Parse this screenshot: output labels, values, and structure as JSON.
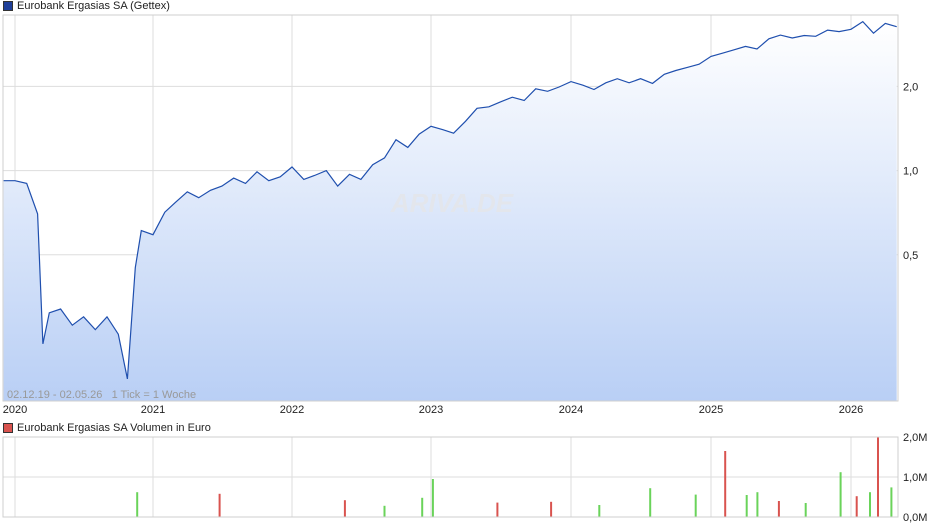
{
  "legend": {
    "price_label": "Eurobank Ergasias SA (Gettex)",
    "volume_label": "Eurobank Ergasias SA Volumen in Euro",
    "price_color": "#1f3f99",
    "volume_color": "#d9534f"
  },
  "range_info": "02.12.19 - 02.05.26   1 Tick = 1 Woche",
  "watermark": "ARIVA.DE",
  "chart_data": [
    {
      "type": "area",
      "series": [
        {
          "name": "Eurobank Ergasias SA (Gettex)",
          "x": [
            "2019-12-02",
            "2020-01-01",
            "2020-02-01",
            "2020-03-01",
            "2020-03-15",
            "2020-04-01",
            "2020-05-01",
            "2020-06-01",
            "2020-07-01",
            "2020-08-01",
            "2020-09-01",
            "2020-10-01",
            "2020-10-25",
            "2020-11-15",
            "2020-12-01",
            "2021-01-01",
            "2021-02-01",
            "2021-03-01",
            "2021-04-01",
            "2021-05-01",
            "2021-06-01",
            "2021-07-01",
            "2021-08-01",
            "2021-09-01",
            "2021-10-01",
            "2021-11-01",
            "2021-12-01",
            "2022-01-01",
            "2022-02-01",
            "2022-03-01",
            "2022-04-01",
            "2022-05-01",
            "2022-06-01",
            "2022-07-01",
            "2022-08-01",
            "2022-09-01",
            "2022-10-01",
            "2022-11-01",
            "2022-12-01",
            "2023-01-01",
            "2023-02-01",
            "2023-03-01",
            "2023-04-01",
            "2023-05-01",
            "2023-06-01",
            "2023-07-01",
            "2023-08-01",
            "2023-09-01",
            "2023-10-01",
            "2023-11-01",
            "2023-12-01",
            "2024-01-01",
            "2024-02-01",
            "2024-03-01",
            "2024-04-01",
            "2024-05-01",
            "2024-06-01",
            "2024-07-01",
            "2024-08-01",
            "2024-09-01",
            "2024-10-01",
            "2024-11-01",
            "2024-12-01",
            "2025-01-01",
            "2025-02-01",
            "2025-03-01",
            "2025-04-01",
            "2025-05-01",
            "2025-06-01",
            "2025-07-01",
            "2025-08-01",
            "2025-09-01",
            "2025-10-01",
            "2025-11-01",
            "2025-12-01",
            "2026-01-01",
            "2026-02-01",
            "2026-03-01",
            "2026-04-01",
            "2026-05-01"
          ],
          "values": [
            0.92,
            0.92,
            0.9,
            0.7,
            0.24,
            0.31,
            0.32,
            0.28,
            0.3,
            0.27,
            0.3,
            0.26,
            0.18,
            0.45,
            0.61,
            0.59,
            0.71,
            0.77,
            0.84,
            0.8,
            0.85,
            0.88,
            0.94,
            0.9,
            0.99,
            0.92,
            0.95,
            1.03,
            0.93,
            0.96,
            1.0,
            0.88,
            0.97,
            0.93,
            1.05,
            1.11,
            1.29,
            1.21,
            1.35,
            1.44,
            1.4,
            1.36,
            1.5,
            1.67,
            1.69,
            1.76,
            1.83,
            1.78,
            1.96,
            1.92,
            1.99,
            2.08,
            2.02,
            1.95,
            2.06,
            2.13,
            2.06,
            2.13,
            2.05,
            2.21,
            2.28,
            2.34,
            2.4,
            2.56,
            2.63,
            2.7,
            2.78,
            2.72,
            2.96,
            3.05,
            2.98,
            3.04,
            3.02,
            3.18,
            3.14,
            3.2,
            3.41,
            3.1,
            3.36,
            3.27
          ]
        }
      ],
      "xlabel": "",
      "ylabel": "",
      "x_ticks": [
        "2020",
        "2021",
        "2022",
        "2023",
        "2024",
        "2025",
        "2026"
      ],
      "y_ticks": [
        "0,5",
        "1,0",
        "2,0"
      ],
      "y_scale": "log",
      "ylim": [
        0.15,
        3.6
      ],
      "grid": true,
      "legend_position": "top-left"
    },
    {
      "type": "bar",
      "series": [
        {
          "name": "Eurobank Ergasias SA Volumen in Euro",
          "x": [
            "2020-11-20",
            "2021-06-25",
            "2022-05-20",
            "2022-09-01",
            "2022-12-09",
            "2023-01-06",
            "2023-06-23",
            "2023-11-10",
            "2024-03-15",
            "2024-07-26",
            "2024-11-22",
            "2025-02-07",
            "2025-04-04",
            "2025-05-02",
            "2025-06-27",
            "2025-09-05",
            "2025-12-05",
            "2026-01-16",
            "2026-02-20",
            "2026-03-13",
            "2026-04-17"
          ],
          "values": [
            0.62,
            0.58,
            0.42,
            0.28,
            0.48,
            0.95,
            0.36,
            0.38,
            0.3,
            0.72,
            0.56,
            1.65,
            0.55,
            0.62,
            0.4,
            0.35,
            1.12,
            0.52,
            0.62,
            2.0,
            0.74
          ],
          "direction": [
            "up",
            "down",
            "down",
            "up",
            "up",
            "up",
            "down",
            "down",
            "up",
            "up",
            "up",
            "down",
            "up",
            "up",
            "down",
            "up",
            "up",
            "down",
            "up",
            "down",
            "up"
          ]
        }
      ],
      "x_ticks": [
        "2020",
        "2021",
        "2022",
        "2023",
        "2024",
        "2025",
        "2026"
      ],
      "y_ticks": [
        "0,0M",
        "1,0M",
        "2,0M"
      ],
      "ylim": [
        0,
        2.0
      ],
      "up_color": "#6ad35a",
      "down_color": "#d9534f",
      "grid": true
    }
  ]
}
